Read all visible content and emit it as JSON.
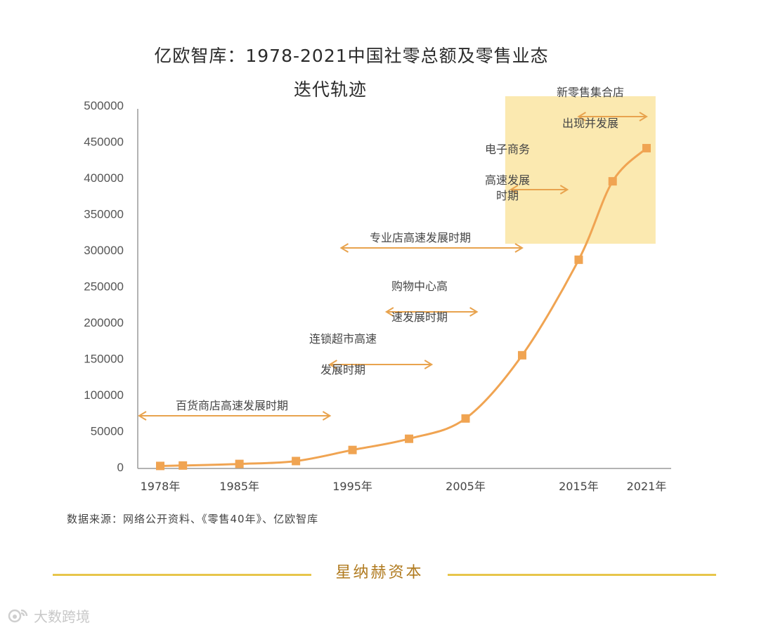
{
  "chart_data": {
    "type": "line",
    "title_line1": "亿欧智库：1978-2021中国社零总额及零售业态",
    "title_line2": "迭代轨迹",
    "x_ticks": [
      "1978年",
      "1985年",
      "1995年",
      "2005年",
      "2015年",
      "2021年"
    ],
    "y_ticks": [
      "500000",
      "450000",
      "400000",
      "350000",
      "300000",
      "250000",
      "200000",
      "150000",
      "100000",
      "50000",
      "0"
    ],
    "ylim": [
      0,
      500000
    ],
    "xlim": [
      1978,
      2021
    ],
    "grid": false,
    "series": [
      {
        "color": "#f0a452",
        "points": [
          {
            "x": 1978,
            "y": 1559
          },
          {
            "x": 1980,
            "y": 2140
          },
          {
            "x": 1985,
            "y": 4305
          },
          {
            "x": 1990,
            "y": 8300
          },
          {
            "x": 1995,
            "y": 23614
          },
          {
            "x": 2000,
            "y": 39106
          },
          {
            "x": 2005,
            "y": 67177
          },
          {
            "x": 2010,
            "y": 154554
          },
          {
            "x": 2015,
            "y": 286588
          },
          {
            "x": 2018,
            "y": 395000
          },
          {
            "x": 2021,
            "y": 440823
          }
        ]
      }
    ],
    "annotations": [
      {
        "lines": [
          "百货商店高速发展时期"
        ],
        "x_from": 1978,
        "x_to": 1993
      },
      {
        "lines": [
          "连锁超市高速",
          "发展时期"
        ],
        "x_from": 1993,
        "x_to": 2002
      },
      {
        "lines": [
          "购物中心高",
          "速发展时期"
        ],
        "x_from": 1998,
        "x_to": 2006
      },
      {
        "lines": [
          "专业店高速发展时期"
        ],
        "x_from": 1994,
        "x_to": 2010
      },
      {
        "lines": [
          "电子商务",
          "高速发展",
          "时期"
        ],
        "x_from": 2009,
        "x_to": 2014
      },
      {
        "lines": [
          "新零售集合店",
          "出现并发展"
        ],
        "x_from": 2015,
        "x_to": 2021
      }
    ],
    "highlight_color": "#fbe9b0",
    "accent_color": "#e8a34e"
  },
  "source_text": "数据来源：网络公开资料、《零售40年》、亿欧智库",
  "footer_brand": "星纳赫资本",
  "footer_line_color": "#e7c64b",
  "watermark": {
    "text": "大数跨境",
    "icon": "weibo-like-logo-icon"
  }
}
